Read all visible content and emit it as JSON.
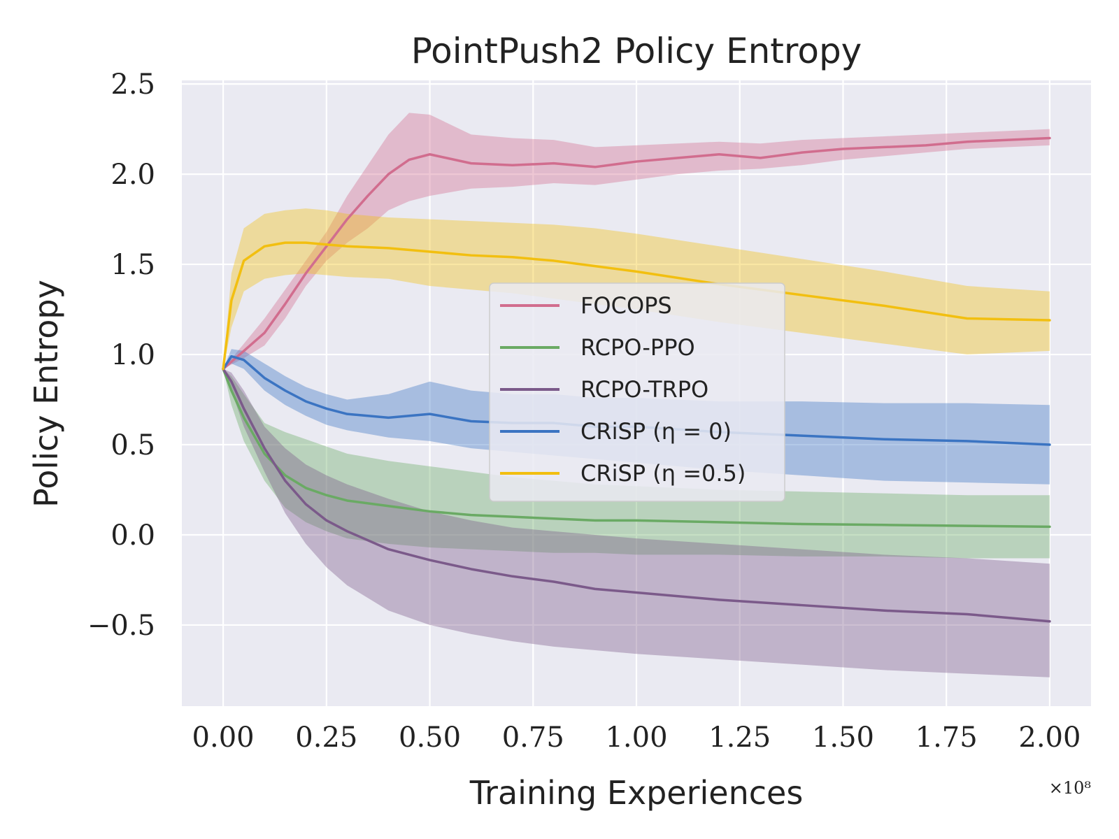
{
  "chart_data": {
    "type": "line",
    "title": "PointPush2 Policy Entropy",
    "xlabel": "Training Experiences",
    "ylabel": "Policy Entropy",
    "x_exponent_label": "×10⁸",
    "xlim": [
      -0.1,
      2.1
    ],
    "ylim": [
      -0.95,
      2.52
    ],
    "xticks": [
      0.0,
      0.25,
      0.5,
      0.75,
      1.0,
      1.25,
      1.5,
      1.75,
      2.0
    ],
    "xtick_labels": [
      "0.00",
      "0.25",
      "0.50",
      "0.75",
      "1.00",
      "1.25",
      "1.50",
      "1.75",
      "2.00"
    ],
    "yticks": [
      -0.5,
      0.0,
      0.5,
      1.0,
      1.5,
      2.0,
      2.5
    ],
    "ytick_labels": [
      "−0.5",
      "0.0",
      "0.5",
      "1.0",
      "1.5",
      "2.0",
      "2.5"
    ],
    "grid": true,
    "legend_position": "center",
    "series": [
      {
        "name": "FOCOPS",
        "color": "#d16d8e",
        "x": [
          0.0,
          0.05,
          0.1,
          0.15,
          0.2,
          0.25,
          0.3,
          0.35,
          0.4,
          0.45,
          0.5,
          0.6,
          0.7,
          0.8,
          0.9,
          1.0,
          1.1,
          1.2,
          1.3,
          1.4,
          1.5,
          1.6,
          1.7,
          1.8,
          1.9,
          2.0
        ],
        "values": [
          0.92,
          1.02,
          1.12,
          1.28,
          1.45,
          1.6,
          1.75,
          1.88,
          2.0,
          2.08,
          2.11,
          2.06,
          2.05,
          2.06,
          2.04,
          2.07,
          2.09,
          2.11,
          2.09,
          2.12,
          2.14,
          2.15,
          2.16,
          2.18,
          2.19,
          2.2
        ],
        "lower": [
          0.92,
          0.98,
          1.05,
          1.2,
          1.38,
          1.52,
          1.62,
          1.7,
          1.8,
          1.85,
          1.88,
          1.92,
          1.93,
          1.95,
          1.94,
          1.97,
          2.0,
          2.02,
          2.03,
          2.05,
          2.08,
          2.1,
          2.12,
          2.14,
          2.15,
          2.16
        ],
        "upper": [
          0.92,
          1.06,
          1.2,
          1.36,
          1.52,
          1.68,
          1.88,
          2.05,
          2.22,
          2.34,
          2.33,
          2.22,
          2.2,
          2.19,
          2.15,
          2.16,
          2.17,
          2.18,
          2.17,
          2.19,
          2.2,
          2.21,
          2.22,
          2.23,
          2.24,
          2.25
        ]
      },
      {
        "name": "RCPO-PPO",
        "color": "#6aaa64",
        "x": [
          0.0,
          0.02,
          0.05,
          0.1,
          0.15,
          0.2,
          0.25,
          0.3,
          0.4,
          0.5,
          0.6,
          0.7,
          0.8,
          0.9,
          1.0,
          1.2,
          1.4,
          1.6,
          1.8,
          2.0
        ],
        "values": [
          0.92,
          0.8,
          0.65,
          0.45,
          0.33,
          0.26,
          0.22,
          0.19,
          0.16,
          0.13,
          0.11,
          0.1,
          0.09,
          0.08,
          0.08,
          0.07,
          0.06,
          0.055,
          0.05,
          0.045
        ],
        "lower": [
          0.92,
          0.72,
          0.52,
          0.3,
          0.15,
          0.07,
          0.02,
          -0.02,
          -0.05,
          -0.07,
          -0.08,
          -0.09,
          -0.1,
          -0.1,
          -0.11,
          -0.11,
          -0.12,
          -0.12,
          -0.13,
          -0.13
        ],
        "upper": [
          0.92,
          0.88,
          0.78,
          0.62,
          0.57,
          0.53,
          0.49,
          0.45,
          0.41,
          0.38,
          0.35,
          0.32,
          0.3,
          0.28,
          0.27,
          0.25,
          0.24,
          0.23,
          0.22,
          0.22
        ]
      },
      {
        "name": "RCPO-TRPO",
        "color": "#7b5a8a",
        "x": [
          0.0,
          0.02,
          0.05,
          0.1,
          0.15,
          0.2,
          0.25,
          0.3,
          0.4,
          0.5,
          0.6,
          0.7,
          0.8,
          0.9,
          1.0,
          1.2,
          1.4,
          1.6,
          1.8,
          2.0
        ],
        "values": [
          0.92,
          0.85,
          0.7,
          0.48,
          0.3,
          0.17,
          0.08,
          0.02,
          -0.08,
          -0.14,
          -0.19,
          -0.23,
          -0.26,
          -0.3,
          -0.32,
          -0.36,
          -0.39,
          -0.42,
          -0.44,
          -0.48
        ],
        "lower": [
          0.92,
          0.8,
          0.6,
          0.35,
          0.12,
          -0.05,
          -0.18,
          -0.28,
          -0.42,
          -0.5,
          -0.55,
          -0.59,
          -0.62,
          -0.64,
          -0.66,
          -0.69,
          -0.72,
          -0.75,
          -0.77,
          -0.79
        ],
        "upper": [
          0.92,
          0.9,
          0.8,
          0.6,
          0.48,
          0.39,
          0.33,
          0.28,
          0.2,
          0.13,
          0.08,
          0.04,
          0.02,
          0.0,
          -0.02,
          -0.05,
          -0.08,
          -0.11,
          -0.13,
          -0.16
        ]
      },
      {
        "name": "CRiSP (η = 0)",
        "color": "#3b74c2",
        "x": [
          0.0,
          0.02,
          0.05,
          0.1,
          0.15,
          0.2,
          0.25,
          0.3,
          0.4,
          0.5,
          0.6,
          0.7,
          0.8,
          0.9,
          1.0,
          1.2,
          1.4,
          1.6,
          1.8,
          2.0
        ],
        "values": [
          0.92,
          0.99,
          0.97,
          0.87,
          0.8,
          0.74,
          0.7,
          0.67,
          0.65,
          0.67,
          0.63,
          0.62,
          0.62,
          0.6,
          0.6,
          0.57,
          0.55,
          0.53,
          0.52,
          0.5
        ],
        "lower": [
          0.92,
          0.95,
          0.92,
          0.8,
          0.72,
          0.66,
          0.61,
          0.58,
          0.54,
          0.52,
          0.48,
          0.46,
          0.44,
          0.42,
          0.4,
          0.36,
          0.33,
          0.3,
          0.29,
          0.28
        ],
        "upper": [
          0.92,
          1.03,
          1.02,
          0.95,
          0.88,
          0.82,
          0.78,
          0.75,
          0.78,
          0.85,
          0.8,
          0.78,
          0.78,
          0.76,
          0.76,
          0.74,
          0.74,
          0.73,
          0.73,
          0.72
        ]
      },
      {
        "name": "CRiSP (η =0.5)",
        "color": "#f2bf10",
        "x": [
          0.0,
          0.02,
          0.05,
          0.1,
          0.15,
          0.2,
          0.25,
          0.3,
          0.4,
          0.5,
          0.6,
          0.7,
          0.8,
          0.9,
          1.0,
          1.2,
          1.4,
          1.6,
          1.8,
          2.0
        ],
        "values": [
          0.92,
          1.3,
          1.52,
          1.6,
          1.62,
          1.62,
          1.61,
          1.6,
          1.59,
          1.57,
          1.55,
          1.54,
          1.52,
          1.49,
          1.46,
          1.39,
          1.33,
          1.27,
          1.2,
          1.19
        ],
        "lower": [
          0.92,
          1.15,
          1.35,
          1.42,
          1.44,
          1.45,
          1.44,
          1.43,
          1.42,
          1.38,
          1.36,
          1.34,
          1.31,
          1.28,
          1.25,
          1.18,
          1.12,
          1.06,
          1.0,
          1.02
        ],
        "upper": [
          0.92,
          1.45,
          1.7,
          1.78,
          1.8,
          1.81,
          1.8,
          1.78,
          1.76,
          1.75,
          1.74,
          1.73,
          1.72,
          1.7,
          1.67,
          1.6,
          1.53,
          1.46,
          1.38,
          1.35
        ]
      }
    ]
  }
}
